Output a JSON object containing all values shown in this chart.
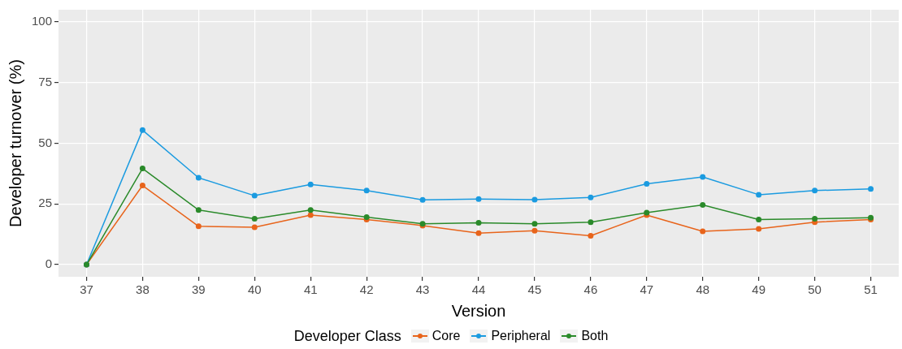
{
  "chart_data": {
    "type": "line",
    "xlabel": "Version",
    "ylabel": "Developer turnover (%)",
    "legend_title": "Developer Class",
    "legend": "bottom",
    "grid": true,
    "marker": "circle",
    "line_style": "solid",
    "categories": [
      "37",
      "38",
      "39",
      "40",
      "41",
      "42",
      "43",
      "44",
      "45",
      "46",
      "47",
      "48",
      "49",
      "50",
      "51"
    ],
    "ylim": [
      -5,
      105
    ],
    "yticks": [
      0,
      25,
      50,
      75,
      100
    ],
    "series": [
      {
        "name": "Core",
        "color": "#e8641b",
        "values": [
          0,
          32.6,
          15.8,
          15.4,
          20.4,
          18.6,
          16.1,
          13.0,
          14.0,
          11.9,
          20.4,
          13.7,
          14.7,
          17.5,
          18.6
        ]
      },
      {
        "name": "Peripheral",
        "color": "#1b9be0",
        "values": [
          0,
          55.4,
          35.8,
          28.4,
          33.0,
          30.5,
          26.7,
          27.0,
          26.8,
          27.7,
          33.3,
          36.1,
          28.8,
          30.5,
          31.2
        ]
      },
      {
        "name": "Both",
        "color": "#2a8a2a",
        "values": [
          0,
          39.6,
          22.5,
          18.9,
          22.5,
          19.6,
          16.8,
          17.2,
          16.8,
          17.5,
          21.4,
          24.6,
          18.6,
          18.9,
          19.3
        ]
      }
    ]
  }
}
